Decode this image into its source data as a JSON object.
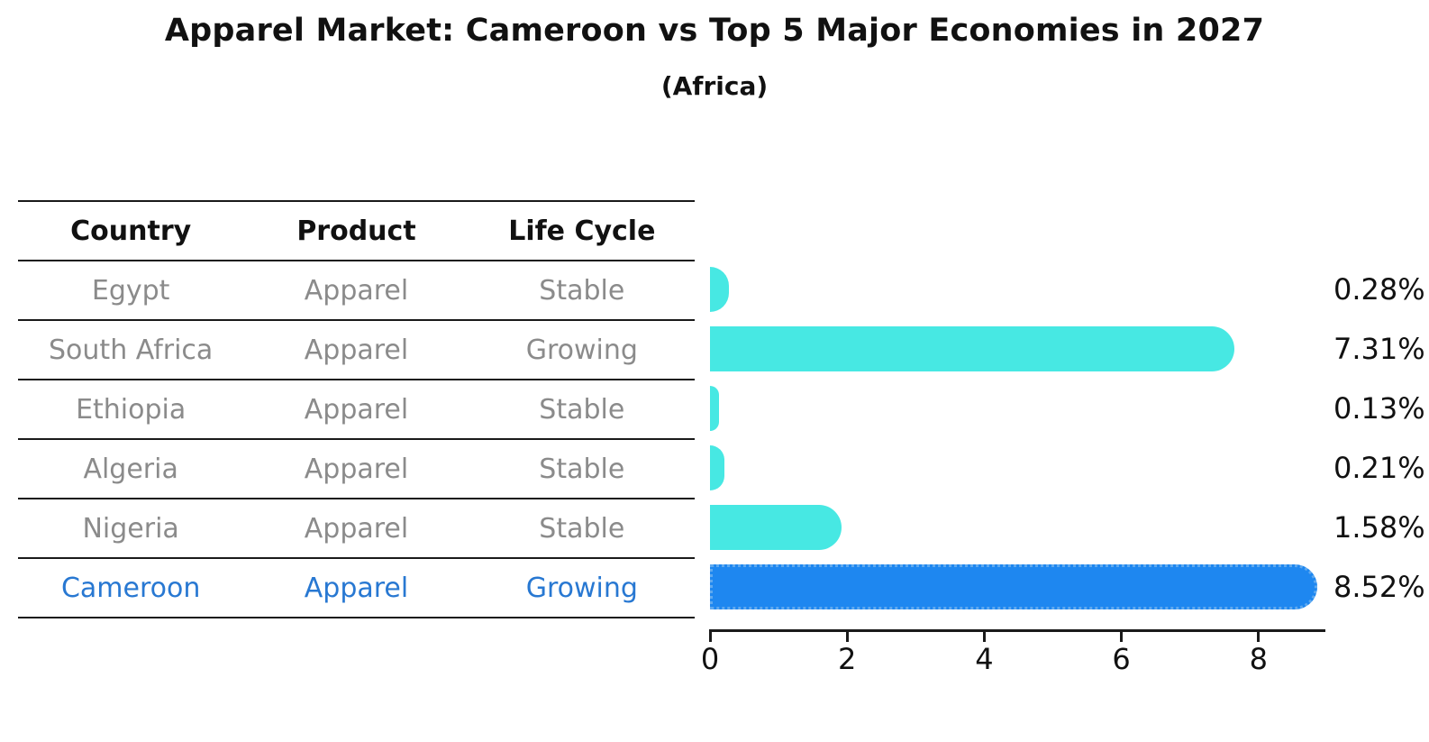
{
  "title": "Apparel Market: Cameroon vs Top 5 Major Economies in 2027",
  "subtitle": "(Africa)",
  "table": {
    "headers": [
      "Country",
      "Product",
      "Life Cycle"
    ],
    "rows": [
      {
        "country": "Egypt",
        "product": "Apparel",
        "life_cycle": "Stable",
        "highlight": false
      },
      {
        "country": "South Africa",
        "product": "Apparel",
        "life_cycle": "Growing",
        "highlight": false
      },
      {
        "country": "Ethiopia",
        "product": "Apparel",
        "life_cycle": "Stable",
        "highlight": false
      },
      {
        "country": "Algeria",
        "product": "Apparel",
        "life_cycle": "Stable",
        "highlight": false
      },
      {
        "country": "Nigeria",
        "product": "Apparel",
        "life_cycle": "Stable",
        "highlight": false
      },
      {
        "country": "Cameroon",
        "product": "Apparel",
        "life_cycle": "Growing",
        "highlight": true
      }
    ]
  },
  "chart_data": {
    "type": "bar",
    "orientation": "horizontal",
    "title": "Apparel Market: Cameroon vs Top 5 Major Economies in 2027",
    "subtitle": "(Africa)",
    "categories": [
      "Egypt",
      "South Africa",
      "Ethiopia",
      "Algeria",
      "Nigeria",
      "Cameroon"
    ],
    "values": [
      0.28,
      7.31,
      0.13,
      0.21,
      1.58,
      8.52
    ],
    "value_labels": [
      "0.28%",
      "7.31%",
      "0.13%",
      "0.21%",
      "1.58%",
      "8.52%"
    ],
    "xlabel": "",
    "ylabel": "",
    "xticks": [
      0,
      2,
      4,
      6,
      8
    ],
    "xlim": [
      0,
      8.95
    ],
    "grid": false,
    "legend_position": "none",
    "highlight_index": 5,
    "colors": {
      "bar": "#47E8E3",
      "highlight_bar": "#1E87F0",
      "highlight_text": "#2878D2",
      "table_text": "#8b8b8b",
      "axis": "#1a1a1a"
    }
  }
}
